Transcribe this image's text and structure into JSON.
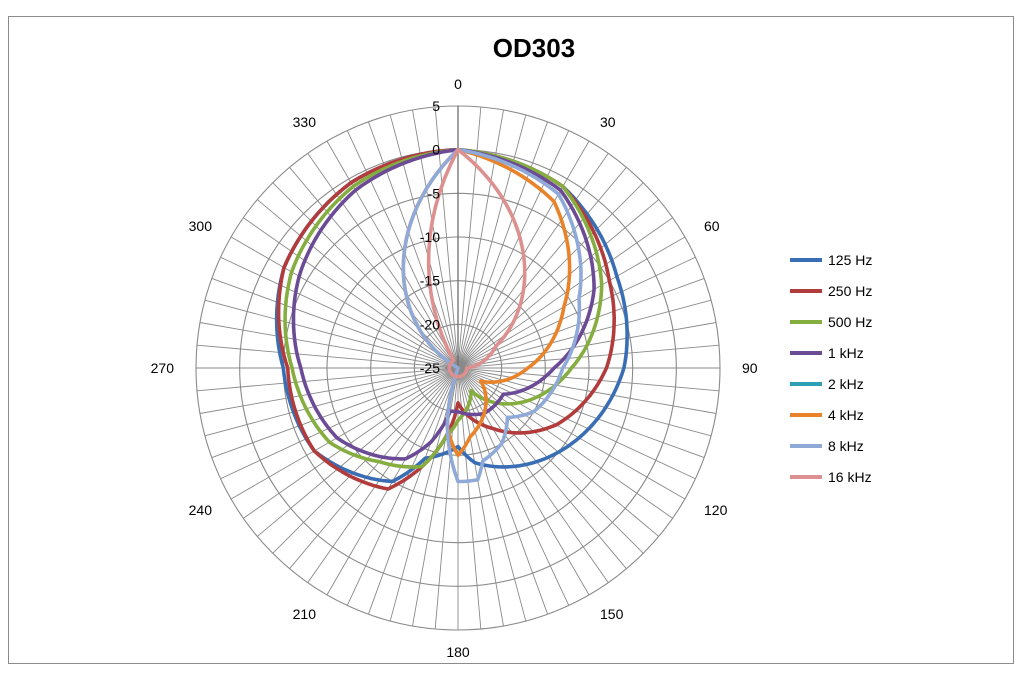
{
  "chart_data": {
    "type": "polar-line",
    "title": "OD303",
    "angular_ticks": [
      "0",
      "30",
      "60",
      "90",
      "120",
      "150",
      "180",
      "210",
      "240",
      "270",
      "300",
      "330"
    ],
    "radial_ticks": [
      "5",
      "0",
      "-5",
      "-10",
      "-15",
      "-20",
      "-25"
    ],
    "rlim": [
      -25,
      5
    ],
    "grid": true,
    "legend_position": "right",
    "series": [
      {
        "name": "125 Hz",
        "color": "#3a6eb4",
        "points": [
          [
            0,
            0
          ],
          [
            30,
            -1
          ],
          [
            60,
            -4
          ],
          [
            90,
            -6
          ],
          [
            120,
            -9
          ],
          [
            150,
            -12
          ],
          [
            170,
            -14
          ],
          [
            180,
            -16
          ],
          [
            190,
            -15
          ],
          [
            200,
            -14
          ],
          [
            210,
            -10
          ],
          [
            240,
            -6
          ],
          [
            270,
            -5
          ],
          [
            300,
            -2
          ],
          [
            330,
            -0.5
          ],
          [
            360,
            0
          ]
        ]
      },
      {
        "name": "250 Hz",
        "color": "#b23b3b",
        "points": [
          [
            0,
            0
          ],
          [
            30,
            -1
          ],
          [
            60,
            -5
          ],
          [
            90,
            -8
          ],
          [
            120,
            -12
          ],
          [
            150,
            -17
          ],
          [
            180,
            -21
          ],
          [
            190,
            -17
          ],
          [
            200,
            -13
          ],
          [
            210,
            -9
          ],
          [
            240,
            -6
          ],
          [
            270,
            -5.5
          ],
          [
            300,
            -2
          ],
          [
            330,
            -0.5
          ],
          [
            360,
            0
          ]
        ]
      },
      {
        "name": "500 Hz",
        "color": "#86ad3f",
        "points": [
          [
            0,
            0
          ],
          [
            30,
            -1
          ],
          [
            60,
            -6
          ],
          [
            90,
            -12
          ],
          [
            120,
            -17
          ],
          [
            150,
            -22
          ],
          [
            180,
            -19
          ],
          [
            190,
            -17
          ],
          [
            200,
            -13
          ],
          [
            210,
            -12
          ],
          [
            220,
            -11
          ],
          [
            240,
            -8
          ],
          [
            270,
            -6
          ],
          [
            300,
            -3
          ],
          [
            330,
            -1
          ],
          [
            360,
            0
          ]
        ]
      },
      {
        "name": "1 kHz",
        "color": "#6c4b96",
        "points": [
          [
            0,
            0
          ],
          [
            30,
            -1.5
          ],
          [
            60,
            -7
          ],
          [
            90,
            -14
          ],
          [
            120,
            -19
          ],
          [
            150,
            -19
          ],
          [
            180,
            -20
          ],
          [
            190,
            -20
          ],
          [
            200,
            -16
          ],
          [
            210,
            -13
          ],
          [
            240,
            -9
          ],
          [
            270,
            -7
          ],
          [
            300,
            -4
          ],
          [
            330,
            -1.5
          ],
          [
            360,
            0
          ]
        ]
      },
      {
        "name": "2 kHz",
        "color": "#2e9fb4",
        "points": []
      },
      {
        "name": "4 kHz",
        "color": "#e8832a",
        "points": [
          [
            0,
            0
          ],
          [
            30,
            -3
          ],
          [
            60,
            -11
          ],
          [
            90,
            -17
          ],
          [
            120,
            -22
          ],
          [
            150,
            -19
          ],
          [
            170,
            -17
          ],
          [
            180,
            -15
          ],
          [
            190,
            -18
          ],
          [
            200,
            -25
          ],
          [
            240,
            -25
          ],
          [
            300,
            -25
          ],
          [
            360,
            0
          ]
        ]
      },
      {
        "name": "8 kHz",
        "color": "#8fa9d8",
        "points": [
          [
            0,
            0
          ],
          [
            30,
            -2
          ],
          [
            60,
            -9
          ],
          [
            90,
            -13
          ],
          [
            120,
            -15
          ],
          [
            135,
            -17
          ],
          [
            150,
            -15
          ],
          [
            165,
            -14
          ],
          [
            170,
            -12
          ],
          [
            180,
            -12
          ],
          [
            190,
            -18
          ],
          [
            200,
            -25
          ],
          [
            300,
            -25
          ],
          [
            360,
            0
          ]
        ]
      },
      {
        "name": "16 kHz",
        "color": "#dd9090",
        "points": [
          [
            0,
            0
          ],
          [
            30,
            -10
          ],
          [
            60,
            -20
          ],
          [
            90,
            -24
          ],
          [
            120,
            -24
          ],
          [
            150,
            -24
          ],
          [
            180,
            -24
          ],
          [
            210,
            -24
          ],
          [
            240,
            -24
          ],
          [
            270,
            -24
          ],
          [
            300,
            -24
          ],
          [
            330,
            -24
          ],
          [
            360,
            0
          ]
        ]
      }
    ]
  }
}
